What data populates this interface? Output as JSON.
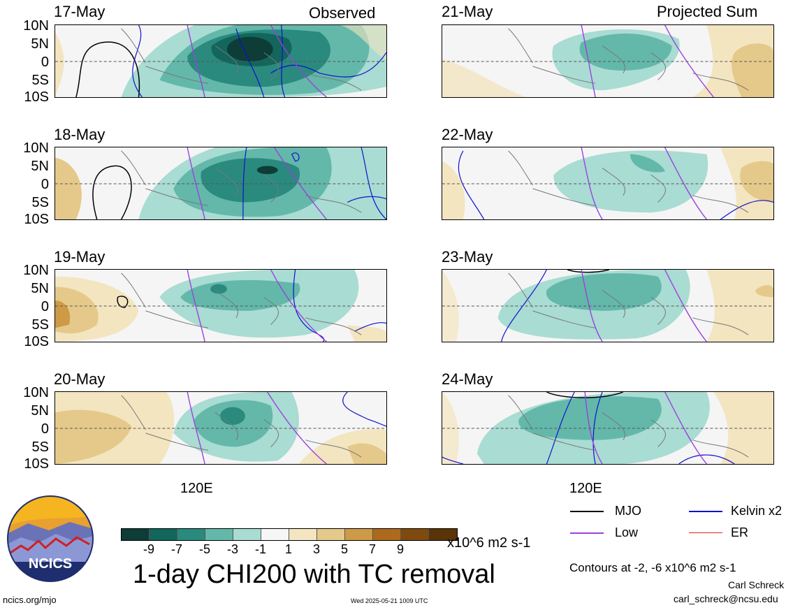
{
  "header": {
    "observed_label": "Observed",
    "projected_label": "Projected Sum"
  },
  "panels": {
    "observed": [
      "17-May",
      "18-May",
      "19-May",
      "20-May"
    ],
    "projected": [
      "21-May",
      "22-May",
      "23-May",
      "24-May"
    ]
  },
  "lat_labels": [
    "10N",
    "5N",
    "0",
    "5S",
    "10S"
  ],
  "lon_label": "120E",
  "colorbar": {
    "colors": [
      "#0d3d36",
      "#12665c",
      "#2a8a7e",
      "#63b8aa",
      "#a9dcd2",
      "#f6f6f6",
      "#f3e5c0",
      "#e5c98a",
      "#cd9a47",
      "#ad6a1c",
      "#7f4a0d",
      "#5a3407"
    ],
    "labels": [
      "-9",
      "-7",
      "-5",
      "-3",
      "-1",
      "1",
      "3",
      "5",
      "7",
      "9"
    ],
    "units": "x10^6 m2 s-1"
  },
  "title": "1-day CHI200 with TC removal",
  "legend": [
    {
      "label": "MJO",
      "color": "#000000"
    },
    {
      "label": "Kelvin x2",
      "color": "#1010d0"
    },
    {
      "label": "Low",
      "color": "#9a40e0"
    },
    {
      "label": "ER",
      "color": "#e02020"
    }
  ],
  "contour_note": "Contours at -2, -6 x10^6 m2 s-1",
  "author": "Carl Schreck",
  "email": "carl_schreck@ncsu.edu",
  "site": "ncics.org/mjo",
  "timestamp": "Wed 2025-05-21 1009 UTC",
  "logo_text": "NCICS"
}
